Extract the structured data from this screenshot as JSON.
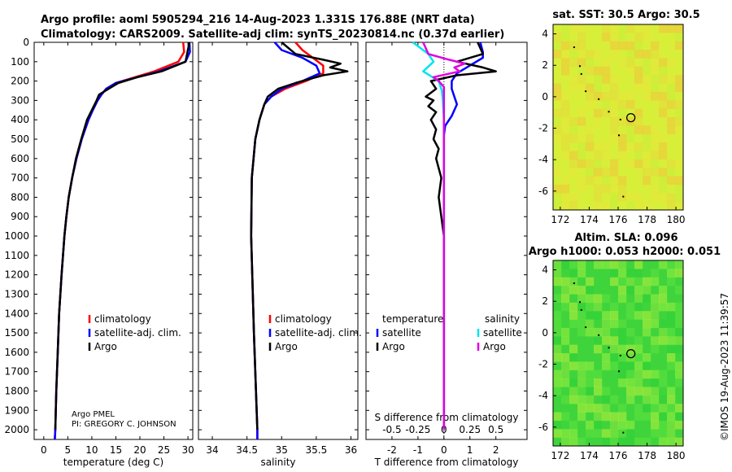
{
  "header": {
    "line1": "Argo profile: aoml 5905294_216 14-Aug-2023 1.331S 176.88E (NRT data)",
    "line2": "Climatology: CARS2009. Satellite-adj clim: synTS_20230814.nc (0.37d earlier)"
  },
  "chart_data": [
    {
      "type": "line",
      "name": "temperature-panel",
      "xlabel": "temperature (deg C)",
      "ylabel": "",
      "xlim": [
        -2,
        31
      ],
      "ylim": [
        2050,
        0
      ],
      "xticks": [
        0,
        5,
        10,
        15,
        20,
        25,
        30
      ],
      "yticks": [
        0,
        100,
        200,
        300,
        400,
        500,
        600,
        700,
        800,
        900,
        1000,
        1100,
        1200,
        1300,
        1400,
        1500,
        1600,
        1700,
        1800,
        1900,
        2000
      ],
      "legend": [
        "climatology",
        "satellite-adj. clim.",
        "Argo"
      ],
      "note_lines": [
        "Argo PMEL",
        "PI: GREGORY C. JOHNSON"
      ],
      "series": [
        {
          "name": "climatology",
          "color": "#ff0000",
          "depth": [
            0,
            50,
            100,
            150,
            180,
            210,
            240,
            270,
            300,
            350,
            400,
            500,
            600,
            700,
            800,
            900,
            1000,
            1200,
            1400,
            1600,
            1800,
            2000,
            2050
          ],
          "values": [
            29.0,
            29.2,
            28.0,
            23.0,
            19.0,
            15.0,
            13.0,
            12.0,
            11.2,
            10.2,
            9.3,
            7.9,
            6.8,
            5.9,
            5.2,
            4.7,
            4.3,
            3.7,
            3.2,
            2.9,
            2.6,
            2.4,
            2.3
          ]
        },
        {
          "name": "satellite-adj. clim.",
          "color": "#0000ff",
          "depth": [
            0,
            50,
            100,
            150,
            180,
            210,
            240,
            270,
            300,
            350,
            400,
            500,
            600,
            700,
            800,
            900,
            1000,
            1200,
            1400,
            1600,
            1800,
            2000,
            2050
          ],
          "values": [
            30.3,
            30.4,
            29.5,
            24.0,
            19.5,
            15.0,
            13.0,
            12.0,
            11.2,
            10.2,
            9.3,
            7.9,
            6.8,
            5.9,
            5.2,
            4.7,
            4.3,
            3.7,
            3.2,
            2.9,
            2.6,
            2.4,
            2.3
          ]
        },
        {
          "name": "Argo",
          "color": "#000000",
          "depth": [
            0,
            100,
            150,
            180,
            210,
            240,
            270,
            300,
            350,
            400,
            500,
            600,
            700,
            800,
            900,
            1000,
            1200,
            1400,
            1600,
            1800,
            2000
          ],
          "values": [
            30.3,
            29.5,
            24.5,
            19.5,
            15.5,
            13.5,
            11.5,
            11.0,
            10.0,
            9.0,
            7.8,
            6.7,
            5.9,
            5.2,
            4.7,
            4.3,
            3.7,
            3.2,
            2.9,
            2.6,
            2.4
          ]
        }
      ]
    },
    {
      "type": "line",
      "name": "salinity-panel",
      "xlabel": "salinity",
      "xlim": [
        33.8,
        36.1
      ],
      "ylim": [
        2050,
        0
      ],
      "xticks": [
        34,
        34.5,
        35,
        35.5,
        36
      ],
      "xticklabels": [
        "34",
        "34.5",
        "35",
        "35.5",
        "36"
      ],
      "legend": [
        "climatology",
        "satellite-adj. clim.",
        "Argo"
      ],
      "series": [
        {
          "name": "climatology",
          "color": "#ff0000",
          "depth": [
            0,
            40,
            80,
            120,
            160,
            200,
            240,
            280,
            320,
            400,
            500,
            700,
            1000,
            1500,
            2000,
            2050
          ],
          "values": [
            35.2,
            35.3,
            35.45,
            35.6,
            35.6,
            35.35,
            35.05,
            34.85,
            34.75,
            34.68,
            34.62,
            34.57,
            34.56,
            34.6,
            34.65,
            34.65
          ]
        },
        {
          "name": "satellite-adj. clim.",
          "color": "#0000ff",
          "depth": [
            0,
            40,
            80,
            120,
            160,
            200,
            240,
            280,
            320,
            400,
            500,
            700,
            1000,
            1500,
            2000,
            2050
          ],
          "values": [
            34.9,
            35.0,
            35.3,
            35.5,
            35.55,
            35.3,
            35.0,
            34.85,
            34.75,
            34.68,
            34.62,
            34.57,
            34.56,
            34.6,
            34.65,
            34.65
          ]
        },
        {
          "name": "Argo",
          "color": "#000000",
          "depth": [
            0,
            60,
            90,
            110,
            130,
            150,
            170,
            190,
            210,
            240,
            280,
            320,
            400,
            500,
            700,
            1000,
            1500,
            2000
          ],
          "values": [
            35.0,
            35.2,
            35.6,
            35.85,
            35.7,
            35.95,
            35.6,
            35.4,
            35.2,
            34.95,
            34.8,
            34.75,
            34.68,
            34.62,
            34.57,
            34.56,
            34.6,
            34.65
          ]
        }
      ]
    },
    {
      "type": "line",
      "name": "difference-panel",
      "xlabel": "T difference from climatology",
      "xlabel_top": "S difference from climatology",
      "xlim": [
        -3,
        3.2
      ],
      "ylim": [
        2050,
        0
      ],
      "xticks": [
        -2,
        -1,
        0,
        1,
        2
      ],
      "xticks_s": [
        -0.5,
        -0.25,
        0,
        0.25,
        0.5
      ],
      "xticklabels_s": [
        "-0.5",
        "-0.25",
        "0",
        "0.25",
        "0.5"
      ],
      "legend_headers": [
        "temperature",
        "salinity"
      ],
      "legend": [
        "satellite",
        "Argo",
        "satellite",
        "Argo"
      ],
      "series": [
        {
          "name": "T satellite",
          "color": "#0000ff",
          "depth": [
            0,
            50,
            80,
            120,
            160,
            200,
            240,
            280,
            320,
            380,
            430,
            480,
            600,
            800,
            1000,
            1500,
            2000
          ],
          "values": [
            1.4,
            1.5,
            1.5,
            1.0,
            0.5,
            0.3,
            0.3,
            0.4,
            0.5,
            0.3,
            0.05,
            0,
            0,
            0,
            0,
            0,
            0
          ]
        },
        {
          "name": "T Argo",
          "color": "#000000",
          "depth": [
            0,
            60,
            100,
            130,
            150,
            170,
            200,
            240,
            280,
            300,
            330,
            360,
            400,
            450,
            500,
            550,
            600,
            700,
            800,
            900,
            1000,
            1200,
            1500,
            2000
          ],
          "values": [
            1.3,
            1.5,
            0.5,
            1.5,
            2.0,
            0.5,
            -0.5,
            -0.3,
            -0.7,
            -0.4,
            -0.6,
            -0.3,
            -0.5,
            -0.3,
            -0.4,
            -0.2,
            -0.3,
            -0.1,
            -0.2,
            -0.1,
            0,
            0,
            0,
            0
          ]
        },
        {
          "name": "S satellite",
          "color": "#00e5ee",
          "depth": [
            0,
            60,
            100,
            150,
            200,
            250,
            300,
            400,
            500,
            700,
            1000,
            1500,
            2000
          ],
          "values": [
            -0.3,
            -0.15,
            -0.1,
            -0.2,
            -0.05,
            -0.02,
            -0.01,
            0,
            0,
            0,
            0,
            0,
            0
          ]
        },
        {
          "name": "S Argo",
          "color": "#e000e0",
          "depth": [
            0,
            60,
            90,
            110,
            130,
            150,
            180,
            200,
            230,
            260,
            300,
            400,
            500,
            700,
            1000,
            1500,
            2000
          ],
          "values": [
            -0.2,
            -0.15,
            0.05,
            0.2,
            0.1,
            0.15,
            -0.1,
            -0.05,
            0,
            0,
            0,
            0,
            0,
            0,
            0,
            0,
            0
          ]
        }
      ]
    },
    {
      "type": "heatmap",
      "name": "sst-map",
      "title": "sat. SST: 30.5 Argo: 30.5",
      "xlim": [
        171.5,
        180.5
      ],
      "ylim": [
        -7.2,
        4.6
      ],
      "xticks": [
        172,
        174,
        176,
        178,
        180
      ],
      "yticks": [
        4,
        2,
        0,
        -2,
        -4,
        -6
      ],
      "marker": {
        "lon": 176.88,
        "lat": -1.331
      }
    },
    {
      "type": "heatmap",
      "name": "sla-map",
      "title": "Altim. SLA: 0.096",
      "subtitle": "Argo h1000: 0.053 h2000: 0.051",
      "xlim": [
        171.5,
        180.5
      ],
      "ylim": [
        -7.2,
        4.6
      ],
      "xticks": [
        172,
        174,
        176,
        178,
        180
      ],
      "yticks": [
        4,
        2,
        0,
        -2,
        -4,
        -6
      ],
      "marker": {
        "lon": 176.88,
        "lat": -1.331
      }
    }
  ],
  "footer": {
    "credit": "©IMOS 19-Aug-2023 11:39:57"
  },
  "colors": {
    "climatology": "#ff0000",
    "satellite_adj": "#0000ff",
    "argo": "#000000",
    "sat_salinity": "#00e5ee",
    "argo_salinity": "#e000e0"
  }
}
